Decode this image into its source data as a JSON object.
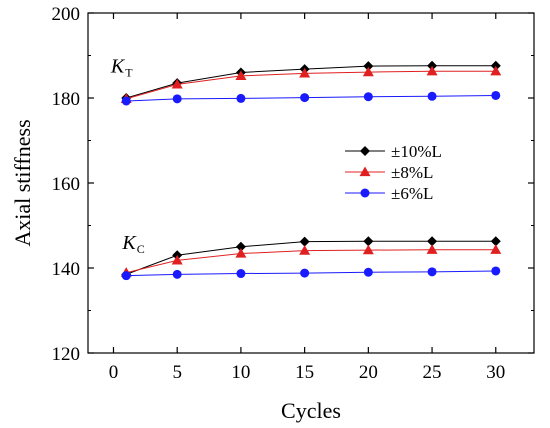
{
  "chart_data": {
    "type": "line",
    "xlabel": "Cycles",
    "ylabel": "Axial stiffness",
    "xlim": [
      -2,
      33
    ],
    "ylim": [
      120,
      200
    ],
    "xticks": [
      0,
      5,
      10,
      15,
      20,
      25,
      30
    ],
    "yticks": [
      120,
      140,
      160,
      180,
      200
    ],
    "grid": false,
    "legend_position": "center-right",
    "annotations": [
      {
        "base": "K",
        "sub": "T",
        "x": -0.2,
        "y": 186
      },
      {
        "base": "K",
        "sub": "C",
        "x": 0.7,
        "y": 144.5
      }
    ],
    "legend": [
      "±10%L",
      "±8%L",
      "±6%L"
    ],
    "series": [
      {
        "name": "±10%L",
        "group": "KT",
        "color": "#000000",
        "marker": "diamond",
        "x": [
          1,
          5,
          10,
          15,
          20,
          25,
          30
        ],
        "y": [
          180,
          183.5,
          186,
          186.8,
          187.5,
          187.6,
          187.6
        ]
      },
      {
        "name": "±8%L",
        "group": "KT",
        "color": "#e02020",
        "marker": "triangle",
        "x": [
          1,
          5,
          10,
          15,
          20,
          25,
          30
        ],
        "y": [
          179.8,
          183.2,
          185.2,
          185.8,
          186.1,
          186.3,
          186.3
        ]
      },
      {
        "name": "±6%L",
        "group": "KT",
        "color": "#1a1aff",
        "marker": "circle",
        "x": [
          1,
          5,
          10,
          15,
          20,
          25,
          30
        ],
        "y": [
          179.3,
          179.8,
          179.9,
          180.1,
          180.3,
          180.4,
          180.6
        ]
      },
      {
        "name": "±10%L",
        "group": "KC",
        "color": "#000000",
        "marker": "diamond",
        "x": [
          1,
          5,
          10,
          15,
          20,
          25,
          30
        ],
        "y": [
          138.5,
          143,
          145,
          146.2,
          146.3,
          146.3,
          146.3
        ]
      },
      {
        "name": "±8%L",
        "group": "KC",
        "color": "#e02020",
        "marker": "triangle",
        "x": [
          1,
          5,
          10,
          15,
          20,
          25,
          30
        ],
        "y": [
          138.9,
          141.8,
          143.4,
          144.1,
          144.2,
          144.3,
          144.3
        ]
      },
      {
        "name": "±6%L",
        "group": "KC",
        "color": "#1a1aff",
        "marker": "circle",
        "x": [
          1,
          5,
          10,
          15,
          20,
          25,
          30
        ],
        "y": [
          138.2,
          138.5,
          138.7,
          138.8,
          139.0,
          139.1,
          139.3
        ]
      }
    ]
  }
}
